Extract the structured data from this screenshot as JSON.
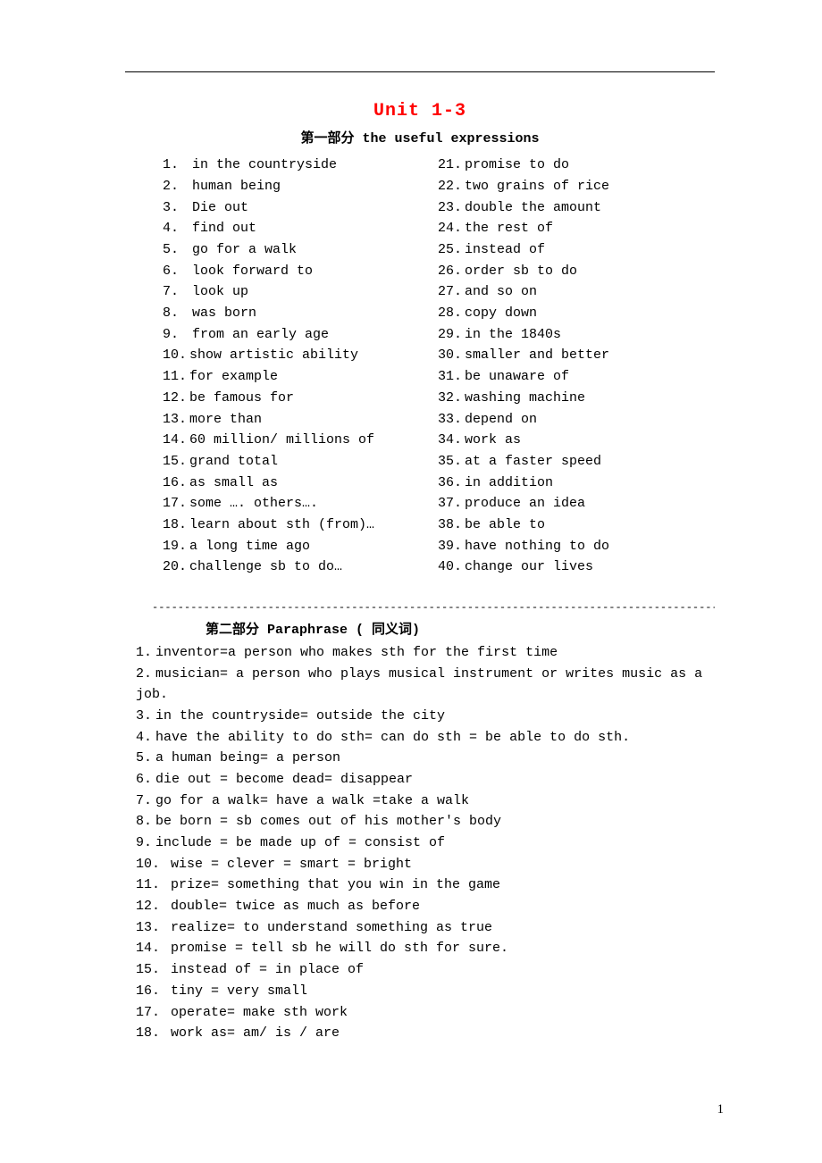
{
  "title": "Unit 1-3",
  "section1": {
    "prefix": "第一部分",
    "rest": " the useful  expressions"
  },
  "left": [
    {
      "n": "1.",
      "t": " in the countryside"
    },
    {
      "n": "2.",
      "t": " human being"
    },
    {
      "n": "3.",
      "t": " Die out"
    },
    {
      "n": "4.",
      "t": " find out"
    },
    {
      "n": "5.",
      "t": " go for a walk"
    },
    {
      "n": "6.",
      "t": " look forward to"
    },
    {
      "n": "7.",
      "t": " look up"
    },
    {
      "n": "8.",
      "t": " was born"
    },
    {
      "n": "9.",
      "t": " from an early age"
    },
    {
      "n": "10.",
      "t": "show artistic ability"
    },
    {
      "n": "11.",
      "t": "for example"
    },
    {
      "n": "12.",
      "t": "be famous for"
    },
    {
      "n": "13.",
      "t": "more than"
    },
    {
      "n": "14.",
      "t": "60 million/ millions of"
    },
    {
      "n": "15.",
      "t": "grand total"
    },
    {
      "n": "16.",
      "t": "as small as"
    },
    {
      "n": "17.",
      "t": "some …. others…."
    },
    {
      "n": "18.",
      "t": "learn about sth (from)…"
    },
    {
      "n": "19.",
      "t": "a long time ago"
    },
    {
      "n": "20.",
      "t": "challenge sb to do…"
    }
  ],
  "right": [
    {
      "n": "21.",
      "t": "promise to do"
    },
    {
      "n": "22.",
      "t": "two grains of rice"
    },
    {
      "n": "23.",
      "t": "double the amount"
    },
    {
      "n": "24.",
      "t": "the rest of"
    },
    {
      "n": "25.",
      "t": "instead of"
    },
    {
      "n": "26.",
      "t": "order sb to do"
    },
    {
      "n": "27.",
      "t": "and so on"
    },
    {
      "n": "28.",
      "t": "copy down"
    },
    {
      "n": "29.",
      "t": "in the 1840s"
    },
    {
      "n": "30.",
      "t": "smaller and better"
    },
    {
      "n": "31.",
      "t": "be unaware of"
    },
    {
      "n": "32.",
      "t": "washing machine"
    },
    {
      "n": "33.",
      "t": "depend on"
    },
    {
      "n": "34.",
      "t": "work as"
    },
    {
      "n": "35.",
      "t": "at a faster speed"
    },
    {
      "n": "36.",
      "t": "in addition"
    },
    {
      "n": "37.",
      "t": "produce an idea"
    },
    {
      "n": "38.",
      "t": "be able to"
    },
    {
      "n": "39.",
      "t": "have nothing to do"
    },
    {
      "n": "40.",
      "t": "change our lives"
    }
  ],
  "dashline": "----------------------------------------------------------------------------------------------",
  "section2": {
    "prefix": "第二部分",
    "rest": " Paraphrase ( 同义词)",
    "tail": ""
  },
  "para": [
    {
      "n": "1.",
      "t": "inventor=a person who makes sth for the first time"
    },
    {
      "n": "2.",
      "t": "musician= a person who plays musical instrument or writes music as a job."
    },
    {
      "n": "3.",
      "t": "in the countryside= outside the city"
    },
    {
      "n": "4.",
      "t": "have the ability to do sth= can do sth = be able to do sth."
    },
    {
      "n": "5.",
      "t": "a human being= a person"
    },
    {
      "n": "6.",
      "t": "die out = become dead= disappear"
    },
    {
      "n": "7.",
      "t": "go for a walk= have a walk =take a walk"
    },
    {
      "n": "8.",
      "t": "be born = sb comes out of his mother's body"
    },
    {
      "n": "9.",
      "t": "include = be made up of = consist of"
    },
    {
      "n": "10.",
      "t": " wise = clever = smart = bright"
    },
    {
      "n": "11.",
      "t": " prize= something that you win in the game"
    },
    {
      "n": "12.",
      "t": " double= twice as much as before"
    },
    {
      "n": "13.",
      "t": " realize= to understand something as true"
    },
    {
      "n": "14.",
      "t": " promise = tell sb he will do sth for sure."
    },
    {
      "n": "15.",
      "t": " instead of = in place of"
    },
    {
      "n": "16.",
      "t": " tiny = very small"
    },
    {
      "n": "17.",
      "t": " operate= make sth work"
    },
    {
      "n": "18.",
      "t": " work as= am/ is / are"
    }
  ],
  "pageNumber": "1",
  "colors": {
    "title": "#ff0000",
    "text": "#000000",
    "bg": "#ffffff"
  }
}
